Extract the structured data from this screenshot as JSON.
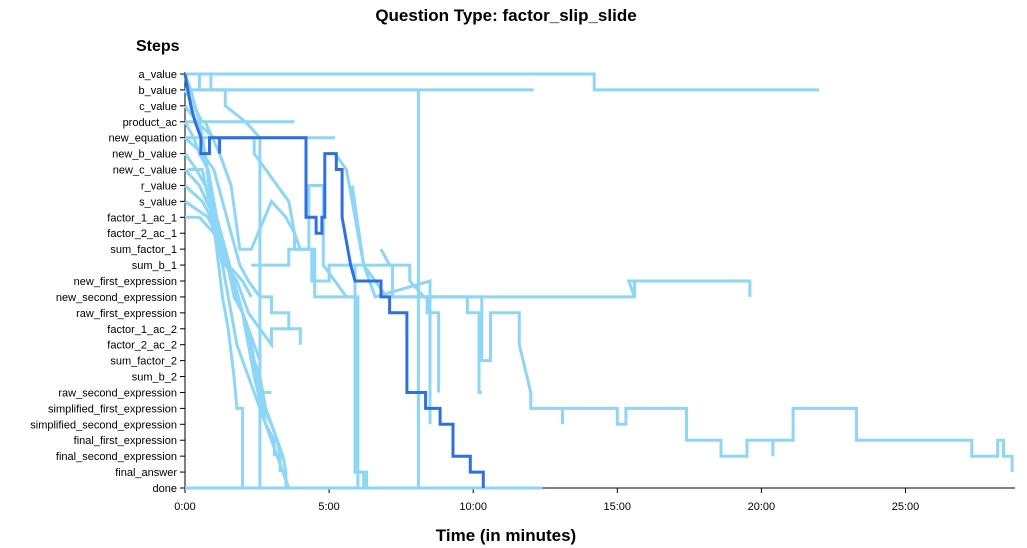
{
  "chart_data": {
    "type": "line",
    "title": "Question Type: factor_slip_slide",
    "ylabel": "Steps",
    "xlabel": "Time (in minutes)",
    "xlim": [
      0,
      28.8
    ],
    "x_ticks": [
      {
        "value": 0,
        "label": "0:00"
      },
      {
        "value": 5,
        "label": "5:00"
      },
      {
        "value": 10,
        "label": "10:00"
      },
      {
        "value": 15,
        "label": "15:00"
      },
      {
        "value": 20,
        "label": "20:00"
      },
      {
        "value": 25,
        "label": "25:00"
      }
    ],
    "steps": [
      "a_value",
      "b_value",
      "c_value",
      "product_ac",
      "new_equation",
      "new_b_value",
      "new_c_value",
      "r_value",
      "s_value",
      "factor_1_ac_1",
      "factor_2_ac_1",
      "sum_factor_1",
      "sum_b_1",
      "new_first_expression",
      "new_second_expression",
      "raw_first_expression",
      "factor_1_ac_2",
      "factor_2_ac_2",
      "sum_factor_2",
      "sum_b_2",
      "raw_second_expression",
      "simplified_first_expression",
      "simplified_second_expression",
      "final_first_expression",
      "final_second_expression",
      "final_answer",
      "done"
    ],
    "colors": {
      "highlight": "#2f6fe0",
      "others": "#8dd6f5"
    },
    "series": [
      {
        "highlight": true,
        "points": [
          [
            0,
            0
          ],
          [
            0.1,
            1
          ],
          [
            0.2,
            2
          ],
          [
            0.35,
            3
          ],
          [
            0.55,
            4
          ],
          [
            0.55,
            5
          ],
          [
            0.85,
            5
          ],
          [
            0.85,
            4
          ],
          [
            1.2,
            4
          ],
          [
            1.2,
            5
          ],
          [
            1.2,
            4
          ],
          [
            4.2,
            4
          ],
          [
            4.2,
            9
          ],
          [
            4.55,
            9
          ],
          [
            4.55,
            10
          ],
          [
            4.75,
            10
          ],
          [
            4.75,
            9
          ],
          [
            4.85,
            9
          ],
          [
            4.85,
            5
          ],
          [
            5.25,
            5
          ],
          [
            5.25,
            6
          ],
          [
            5.45,
            6
          ],
          [
            5.45,
            9
          ],
          [
            5.65,
            11
          ],
          [
            5.75,
            12
          ],
          [
            5.9,
            13
          ],
          [
            6.8,
            13
          ],
          [
            6.8,
            14
          ],
          [
            7.1,
            14
          ],
          [
            7.1,
            15
          ],
          [
            7.7,
            15
          ],
          [
            7.7,
            20
          ],
          [
            8.35,
            20
          ],
          [
            8.35,
            21
          ],
          [
            8.85,
            21
          ],
          [
            8.85,
            22
          ],
          [
            9.3,
            22
          ],
          [
            9.3,
            24
          ],
          [
            9.9,
            24
          ],
          [
            9.9,
            25
          ],
          [
            10.35,
            25
          ],
          [
            10.35,
            26
          ]
        ]
      },
      {
        "points": [
          [
            0,
            0
          ],
          [
            14.2,
            0
          ],
          [
            14.2,
            1
          ],
          [
            22.0,
            1
          ]
        ]
      },
      {
        "points": [
          [
            0,
            0
          ],
          [
            0.5,
            0
          ],
          [
            0.5,
            1
          ],
          [
            12.1,
            1
          ]
        ]
      },
      {
        "points": [
          [
            0,
            1
          ],
          [
            8.1,
            1
          ],
          [
            8.1,
            26
          ]
        ]
      },
      {
        "points": [
          [
            0,
            0
          ],
          [
            0.2,
            1
          ],
          [
            0.35,
            2
          ],
          [
            0.5,
            3
          ],
          [
            0.7,
            5
          ],
          [
            0.9,
            8
          ],
          [
            1.1,
            11
          ],
          [
            1.3,
            14
          ],
          [
            1.5,
            16
          ],
          [
            1.7,
            19
          ],
          [
            1.8,
            21
          ],
          [
            2.0,
            21
          ],
          [
            2.0,
            26
          ]
        ]
      },
      {
        "points": [
          [
            0,
            1
          ],
          [
            0.3,
            2
          ],
          [
            0.6,
            3
          ],
          [
            3.8,
            3
          ]
        ]
      },
      {
        "points": [
          [
            0,
            2
          ],
          [
            0.4,
            3
          ],
          [
            1.0,
            4
          ],
          [
            5.2,
            4
          ]
        ]
      },
      {
        "points": [
          [
            0,
            0
          ],
          [
            0.9,
            0
          ],
          [
            0.9,
            1
          ],
          [
            1.4,
            1
          ],
          [
            1.4,
            2
          ],
          [
            2.1,
            3
          ],
          [
            2.6,
            4
          ],
          [
            2.6,
            26
          ]
        ]
      },
      {
        "points": [
          [
            0,
            3
          ],
          [
            0.7,
            3
          ],
          [
            1.2,
            5
          ],
          [
            1.6,
            7
          ],
          [
            1.9,
            11
          ],
          [
            2.3,
            11
          ],
          [
            3.0,
            8
          ],
          [
            3.5,
            9
          ],
          [
            3.8,
            10
          ],
          [
            3.8,
            11
          ],
          [
            4.3,
            11
          ],
          [
            4.3,
            7
          ],
          [
            4.8,
            7
          ],
          [
            4.8,
            12
          ],
          [
            5.2,
            13
          ],
          [
            5.6,
            14
          ],
          [
            6.0,
            14
          ],
          [
            6.0,
            18
          ],
          [
            6.0,
            26
          ]
        ]
      },
      {
        "points": [
          [
            0,
            4
          ],
          [
            2.4,
            4
          ],
          [
            2.4,
            5
          ],
          [
            2.8,
            6
          ],
          [
            3.2,
            7
          ],
          [
            3.6,
            8
          ],
          [
            3.8,
            10
          ],
          [
            4.0,
            11
          ],
          [
            4.4,
            11
          ],
          [
            4.4,
            13
          ],
          [
            5.0,
            13
          ],
          [
            5.0,
            12
          ],
          [
            5.9,
            12
          ],
          [
            5.9,
            25
          ],
          [
            6.3,
            25
          ],
          [
            6.3,
            26
          ]
        ]
      },
      {
        "points": [
          [
            0,
            4
          ],
          [
            0.6,
            5
          ],
          [
            1.0,
            6
          ],
          [
            1.3,
            8
          ],
          [
            1.6,
            10
          ],
          [
            1.9,
            12
          ],
          [
            2.2,
            13
          ],
          [
            2.6,
            14
          ],
          [
            3.0,
            14
          ],
          [
            3.0,
            15
          ],
          [
            3.6,
            15
          ],
          [
            3.6,
            16
          ],
          [
            4.0,
            16
          ],
          [
            4.0,
            17
          ]
        ]
      },
      {
        "points": [
          [
            0,
            5
          ],
          [
            0.4,
            6
          ],
          [
            0.7,
            7
          ],
          [
            1.1,
            9
          ],
          [
            1.4,
            11
          ],
          [
            1.7,
            13
          ],
          [
            2.0,
            15
          ],
          [
            2.3,
            17
          ],
          [
            2.5,
            19
          ],
          [
            2.7,
            21
          ],
          [
            3.0,
            22
          ],
          [
            3.2,
            23
          ],
          [
            3.4,
            24
          ],
          [
            3.5,
            25
          ],
          [
            3.5,
            26
          ]
        ]
      },
      {
        "points": [
          [
            0,
            3
          ],
          [
            0.3,
            4
          ],
          [
            0.5,
            5
          ],
          [
            0.8,
            6
          ],
          [
            1.0,
            8
          ],
          [
            1.2,
            10
          ],
          [
            1.5,
            12
          ],
          [
            1.7,
            14
          ],
          [
            2.0,
            15
          ],
          [
            2.2,
            17
          ],
          [
            2.4,
            18
          ],
          [
            2.6,
            19
          ],
          [
            2.8,
            21
          ],
          [
            3.0,
            22
          ],
          [
            3.2,
            23
          ],
          [
            3.3,
            24
          ],
          [
            3.3,
            25
          ]
        ]
      },
      {
        "points": [
          [
            0,
            6
          ],
          [
            0.5,
            7
          ],
          [
            1.0,
            9
          ],
          [
            1.4,
            12
          ],
          [
            1.8,
            13
          ],
          [
            2.2,
            15
          ],
          [
            2.6,
            16
          ],
          [
            3.0,
            17
          ],
          [
            3.0,
            16
          ],
          [
            3.7,
            16
          ]
        ]
      },
      {
        "points": [
          [
            0,
            7
          ],
          [
            0.6,
            8
          ],
          [
            1.2,
            10
          ],
          [
            1.6,
            13
          ],
          [
            2.0,
            15
          ],
          [
            2.4,
            19
          ],
          [
            2.8,
            22
          ],
          [
            3.2,
            24
          ],
          [
            3.6,
            26
          ]
        ]
      },
      {
        "points": [
          [
            0,
            8
          ],
          [
            0.8,
            9
          ],
          [
            1.3,
            11
          ],
          [
            1.8,
            14
          ],
          [
            2.2,
            16
          ],
          [
            2.6,
            18
          ],
          [
            2.6,
            20
          ],
          [
            3.0,
            20
          ]
        ]
      },
      {
        "points": [
          [
            0,
            9
          ],
          [
            0.5,
            9
          ],
          [
            1.0,
            10
          ],
          [
            1.5,
            12
          ],
          [
            2.0,
            13
          ],
          [
            2.3,
            14
          ]
        ]
      },
      {
        "points": [
          [
            0,
            26
          ],
          [
            12.4,
            26
          ]
        ]
      },
      {
        "points": [
          [
            2.1,
            26
          ],
          [
            3.5,
            26
          ]
        ]
      },
      {
        "points": [
          [
            5.2,
            5
          ],
          [
            5.6,
            6
          ],
          [
            5.8,
            8
          ],
          [
            6.0,
            10
          ],
          [
            6.2,
            12
          ],
          [
            6.6,
            13
          ],
          [
            7.0,
            14
          ],
          [
            8.4,
            14
          ],
          [
            8.4,
            15
          ],
          [
            8.8,
            15
          ],
          [
            8.8,
            20
          ]
        ]
      },
      {
        "points": [
          [
            5.8,
            7
          ],
          [
            6.2,
            12
          ],
          [
            6.6,
            14
          ],
          [
            8.5,
            13
          ],
          [
            8.5,
            14
          ],
          [
            8.5,
            22
          ]
        ]
      },
      {
        "points": [
          [
            2.3,
            12
          ],
          [
            3.6,
            12
          ],
          [
            3.6,
            11
          ],
          [
            4.5,
            11
          ],
          [
            4.5,
            14
          ],
          [
            5.9,
            14
          ],
          [
            5.9,
            25
          ],
          [
            6.2,
            25
          ],
          [
            6.2,
            26
          ]
        ]
      },
      {
        "points": [
          [
            5.6,
            12
          ],
          [
            7.2,
            12
          ],
          [
            7.2,
            14
          ],
          [
            9.8,
            14
          ],
          [
            9.8,
            15
          ],
          [
            10.2,
            15
          ],
          [
            10.2,
            20
          ],
          [
            10.3,
            20
          ]
        ]
      },
      {
        "points": [
          [
            6.8,
            11
          ],
          [
            7.1,
            12
          ],
          [
            7.8,
            12
          ],
          [
            7.8,
            13
          ],
          [
            8.3,
            14
          ],
          [
            10.3,
            14
          ],
          [
            10.3,
            18
          ],
          [
            10.6,
            18
          ],
          [
            10.6,
            15
          ],
          [
            11.6,
            15
          ],
          [
            11.6,
            17
          ],
          [
            12.0,
            20
          ],
          [
            12.0,
            21
          ],
          [
            13.1,
            21
          ],
          [
            13.1,
            22
          ],
          [
            13.1,
            21
          ],
          [
            15.0,
            21
          ],
          [
            15.0,
            22
          ],
          [
            15.3,
            22
          ],
          [
            15.3,
            21
          ],
          [
            17.4,
            21
          ],
          [
            17.4,
            23
          ],
          [
            18.6,
            23
          ],
          [
            18.6,
            24
          ],
          [
            19.5,
            24
          ],
          [
            19.5,
            23
          ],
          [
            20.4,
            23
          ],
          [
            20.4,
            24
          ],
          [
            20.4,
            23
          ],
          [
            21.1,
            23
          ],
          [
            21.1,
            21
          ],
          [
            23.3,
            21
          ],
          [
            23.3,
            23
          ],
          [
            27.3,
            23
          ],
          [
            27.3,
            24
          ],
          [
            28.2,
            24
          ],
          [
            28.2,
            23
          ],
          [
            28.4,
            23
          ],
          [
            28.4,
            24
          ],
          [
            28.7,
            24
          ],
          [
            28.7,
            25
          ]
        ]
      },
      {
        "points": [
          [
            8.2,
            14
          ],
          [
            15.6,
            14
          ],
          [
            15.6,
            13
          ],
          [
            15.6,
            14
          ],
          [
            15.4,
            13
          ],
          [
            19.6,
            13
          ],
          [
            19.6,
            14
          ]
        ]
      },
      {
        "points": [
          [
            0.1,
            6
          ],
          [
            0.6,
            6
          ],
          [
            1.3,
            12
          ],
          [
            1.8,
            17
          ],
          [
            2.6,
            21
          ],
          [
            2.8,
            22
          ],
          [
            3.1,
            23
          ],
          [
            3.1,
            24
          ]
        ]
      }
    ]
  }
}
